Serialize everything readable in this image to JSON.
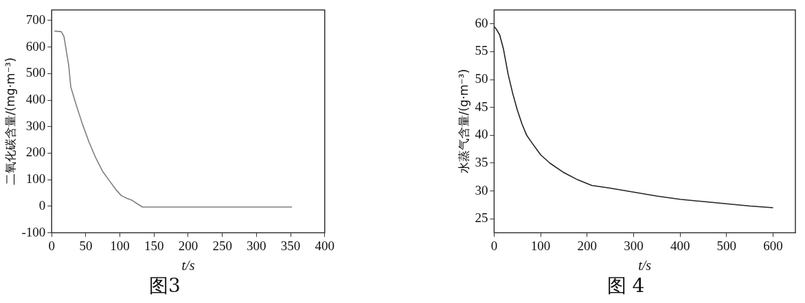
{
  "chart_data": [
    {
      "type": "line",
      "title": "图3",
      "xlabel": "t/s",
      "ylabel": "二氧化碳含量/(mg·m⁻³)",
      "xlim": [
        0,
        400
      ],
      "ylim": [
        -100,
        740
      ],
      "xticks": [
        0,
        50,
        100,
        150,
        200,
        250,
        300,
        350,
        400
      ],
      "yticks": [
        -100,
        0,
        100,
        200,
        300,
        400,
        500,
        600,
        700
      ],
      "grid": false,
      "legend": false,
      "marker": "none",
      "line_style": "solid",
      "series": [
        {
          "color": "#7f7f7f",
          "x": [
            4,
            14,
            18,
            25,
            28,
            35,
            45,
            55,
            65,
            75,
            85,
            95,
            102,
            110,
            118,
            125,
            133,
            200,
            352
          ],
          "values": [
            660,
            658,
            640,
            530,
            450,
            390,
            310,
            240,
            180,
            130,
            95,
            60,
            40,
            30,
            22,
            10,
            -3,
            -3,
            -3
          ]
        }
      ]
    },
    {
      "type": "line",
      "title": "图 4",
      "xlabel": "t/s",
      "ylabel": "水蒸气含量/(g·m⁻³)",
      "xlim": [
        0,
        648
      ],
      "ylim": [
        22.5,
        62.5
      ],
      "xticks": [
        0,
        100,
        200,
        300,
        400,
        500,
        600
      ],
      "yticks": [
        25,
        30,
        35,
        40,
        45,
        50,
        55,
        60
      ],
      "grid": false,
      "legend": false,
      "marker": "none",
      "line_style": "solid",
      "series": [
        {
          "color": "#222222",
          "x": [
            0,
            5,
            12,
            20,
            30,
            40,
            50,
            60,
            70,
            80,
            100,
            120,
            150,
            180,
            210,
            250,
            300,
            350,
            400,
            450,
            500,
            550,
            600
          ],
          "values": [
            59.5,
            59,
            58,
            55.5,
            51,
            47.5,
            44.5,
            42,
            40,
            38.8,
            36.5,
            35,
            33.3,
            32,
            31,
            30.5,
            29.8,
            29.1,
            28.5,
            28.1,
            27.7,
            27.3,
            27
          ]
        }
      ]
    }
  ]
}
